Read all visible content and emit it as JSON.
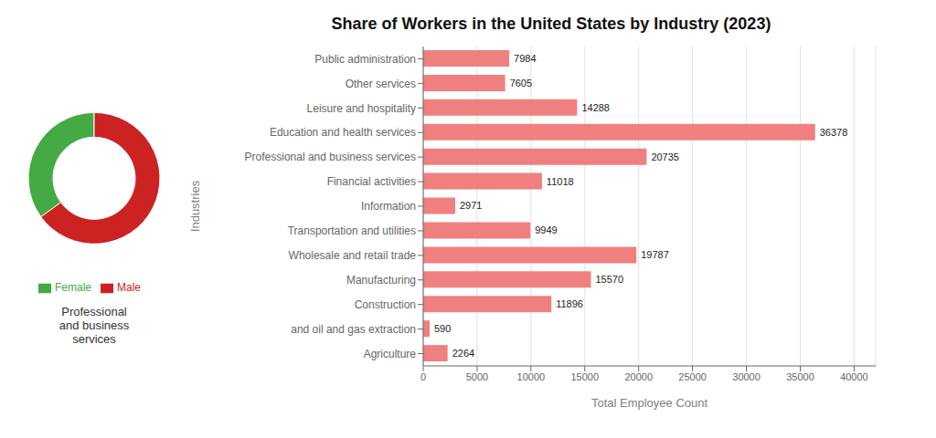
{
  "chart_data": [
    {
      "type": "bar",
      "title": "Share of Workers in the United States by Industry (2023)",
      "xlabel": "Total Employee Count",
      "ylabel": "Industries",
      "orientation": "horizontal",
      "categories": [
        "Public administration",
        "Other services",
        "Leisure and hospitality",
        "Education and health services",
        "Professional and business services",
        "Financial activities",
        "Information",
        "Transportation and utilities",
        "Wholesale and retail trade",
        "Manufacturing",
        "Construction",
        "and oil and gas extraction",
        "Agriculture"
      ],
      "values": [
        7984,
        7605,
        14288,
        36378,
        20735,
        11018,
        2971,
        9949,
        19787,
        15570,
        11896,
        590,
        2264
      ],
      "color": "#F08080",
      "xlim": [
        0,
        42000
      ],
      "xticks": [
        0,
        5000,
        10000,
        15000,
        20000,
        25000,
        30000,
        35000,
        40000
      ],
      "grid": true,
      "data_labels": true
    },
    {
      "type": "pie",
      "title": "Professional\nand business\nservices",
      "categories": [
        "Female",
        "Male"
      ],
      "values": [
        35,
        65
      ],
      "colors": [
        "#44AA44",
        "#CC2222"
      ],
      "legend": "bottom"
    }
  ]
}
